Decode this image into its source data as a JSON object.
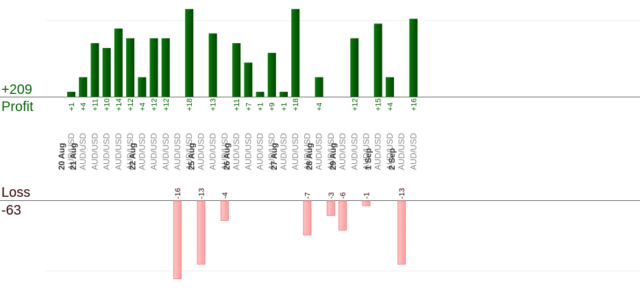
{
  "summary": {
    "profit_total": "+209",
    "profit_label": "Profit",
    "loss_label": "Loss",
    "loss_total": "-63"
  },
  "chart_data": {
    "type": "bar",
    "title": "",
    "xlabel": "",
    "ylabel": "",
    "grid": true,
    "profit_color": "#006600",
    "loss_color": "#ffb3b3",
    "day_groups": [
      {
        "date": "20 Aug",
        "trades": [
          {
            "pair": "AUD/USD",
            "pnl": 1
          }
        ]
      },
      {
        "date": "21 Aug",
        "trades": [
          {
            "pair": "AUD/USD",
            "pnl": 4
          },
          {
            "pair": "AUD/USD",
            "pnl": 11
          },
          {
            "pair": "AUD/USD",
            "pnl": 10
          },
          {
            "pair": "AUD/USD",
            "pnl": 14
          },
          {
            "pair": "AUD/USD",
            "pnl": 12
          }
        ]
      },
      {
        "date": "22 Aug",
        "trades": [
          {
            "pair": "AUD/USD",
            "pnl": 4
          },
          {
            "pair": "AUD/USD",
            "pnl": 12
          },
          {
            "pair": "AUD/USD",
            "pnl": 12
          },
          {
            "pair": "AUD/USD",
            "pnl": -16
          },
          {
            "pair": "AUD/USD",
            "pnl": 18
          }
        ]
      },
      {
        "date": "25 Aug",
        "trades": [
          {
            "pair": "AUD/USD",
            "pnl": -13
          },
          {
            "pair": "AUD/USD",
            "pnl": 13
          },
          {
            "pair": "AUD/USD",
            "pnl": -4
          }
        ]
      },
      {
        "date": "26 Aug",
        "trades": [
          {
            "pair": "AUD/USD",
            "pnl": 11
          },
          {
            "pair": "AUD/USD",
            "pnl": 7
          },
          {
            "pair": "AUD/USD",
            "pnl": 1
          },
          {
            "pair": "AUD/USD",
            "pnl": 9
          }
        ]
      },
      {
        "date": "27 Aug",
        "trades": [
          {
            "pair": "AUD/USD",
            "pnl": 1
          },
          {
            "pair": "AUD/USD",
            "pnl": 18
          },
          {
            "pair": "AUD/USD",
            "pnl": -7
          }
        ]
      },
      {
        "date": "28 Aug",
        "trades": [
          {
            "pair": "AUD/USD",
            "pnl": 4
          },
          {
            "pair": "AUD/USD",
            "pnl": -3
          }
        ]
      },
      {
        "date": "29 Aug",
        "trades": [
          {
            "pair": "AUD/USD",
            "pnl": -6
          },
          {
            "pair": "AUD/USD",
            "pnl": 12
          },
          {
            "pair": "AUD/USD",
            "pnl": -1
          }
        ]
      },
      {
        "date": "1 Sep",
        "trades": [
          {
            "pair": "AUD/USD",
            "pnl": 15
          },
          {
            "pair": "AUD/USD",
            "pnl": 4
          }
        ]
      },
      {
        "date": "2 Sep",
        "trades": [
          {
            "pair": "AUD/USD",
            "pnl": -13
          },
          {
            "pair": "AUD/USD",
            "pnl": 16
          }
        ]
      }
    ]
  }
}
